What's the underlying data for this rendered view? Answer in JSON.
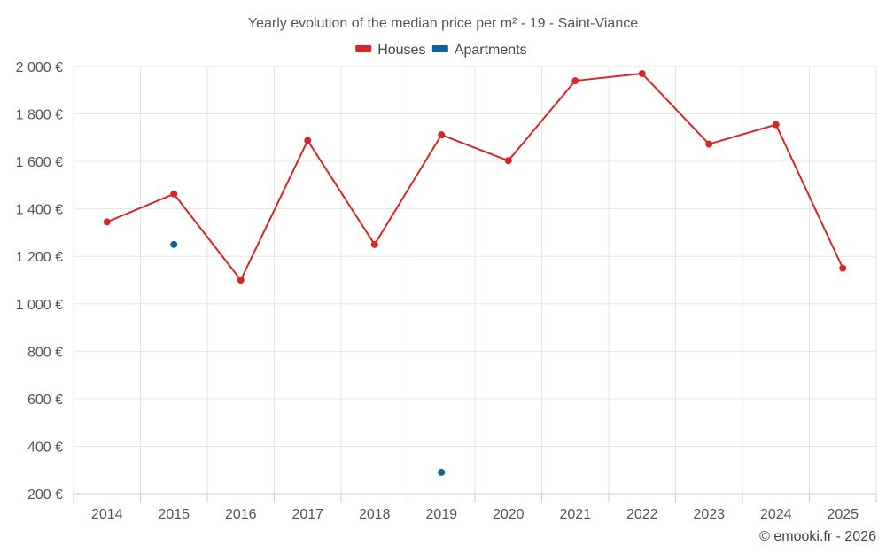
{
  "chart_data": {
    "type": "line",
    "title": "Yearly evolution of the median price per m² - 19 - Saint-Viance",
    "xlabel": "",
    "ylabel": "",
    "categories": [
      "2014",
      "2015",
      "2016",
      "2017",
      "2018",
      "2019",
      "2020",
      "2021",
      "2022",
      "2023",
      "2024",
      "2025"
    ],
    "y_ticks": [
      200,
      400,
      600,
      800,
      1000,
      1200,
      1400,
      1600,
      1800,
      2000
    ],
    "y_tick_labels": [
      "200 €",
      "400 €",
      "600 €",
      "800 €",
      "1 000 €",
      "1 200 €",
      "1 400 €",
      "1 600 €",
      "1 800 €",
      "2 000 €"
    ],
    "ylim": [
      200,
      2000
    ],
    "legend_position": "top-center",
    "grid": true,
    "series": [
      {
        "name": "Houses",
        "color": "#d62728",
        "values": [
          1345,
          1463,
          1100,
          1688,
          1250,
          1712,
          1603,
          1940,
          1970,
          1673,
          1755,
          1150
        ]
      },
      {
        "name": "Apartments",
        "color": "#0b6599",
        "values": [
          null,
          1250,
          null,
          null,
          null,
          290,
          null,
          null,
          null,
          null,
          null,
          null
        ]
      }
    ]
  },
  "credit": "© emooki.fr - 2026"
}
